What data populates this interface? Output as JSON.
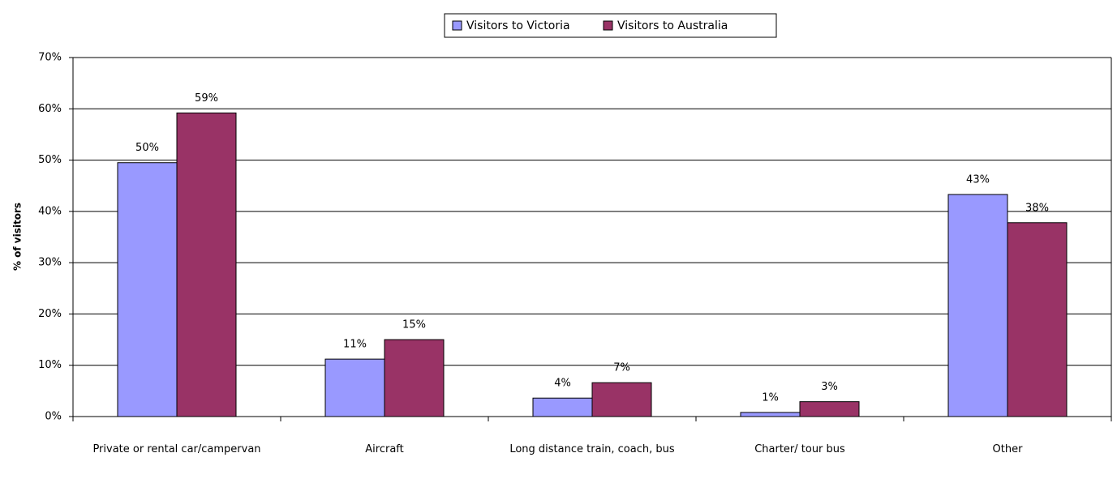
{
  "chart_data": {
    "type": "bar",
    "y_label": "% of visitors",
    "categories": [
      "Private or rental car/campervan",
      "Aircraft",
      "Long distance train, coach, bus",
      "Charter/ tour bus",
      "Other"
    ],
    "series": [
      {
        "name": "Visitors to Victoria",
        "color": "#9999ff",
        "values": [
          49.5,
          11.2,
          3.6,
          0.8,
          43.3
        ],
        "value_labels": [
          "50%",
          "11%",
          "4%",
          "1%",
          "43%"
        ]
      },
      {
        "name": "Visitors to Australia",
        "color": "#993366",
        "values": [
          59.2,
          15.0,
          6.6,
          2.9,
          37.8
        ],
        "value_labels": [
          "59%",
          "15%",
          "7%",
          "3%",
          "38%"
        ]
      }
    ],
    "ylim": [
      0,
      70
    ],
    "yticks": [
      {
        "value": 0,
        "label": "0%"
      },
      {
        "value": 10,
        "label": "10%"
      },
      {
        "value": 20,
        "label": "20%"
      },
      {
        "value": 30,
        "label": "30%"
      },
      {
        "value": 40,
        "label": "40%"
      },
      {
        "value": 50,
        "label": "50%"
      },
      {
        "value": 60,
        "label": "60%"
      },
      {
        "value": 70,
        "label": "70%"
      }
    ],
    "grid": true,
    "legend": "top"
  }
}
